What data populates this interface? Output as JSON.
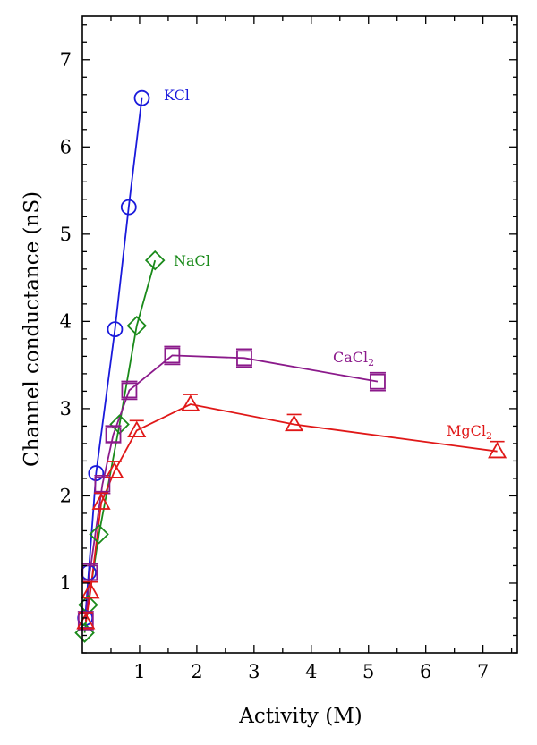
{
  "chart_data": {
    "type": "line",
    "xlabel": "Activity (M)",
    "ylabel": "Channel conductance (nS)",
    "xlim": [
      0,
      7.6
    ],
    "ylim": [
      0.2,
      7.5
    ],
    "xticks": [
      1,
      2,
      3,
      4,
      5,
      6,
      7
    ],
    "yticks": [
      1,
      2,
      3,
      4,
      5,
      6,
      7
    ],
    "xtick_labels": [
      "1",
      "2",
      "3",
      "4",
      "5",
      "6",
      "7"
    ],
    "ytick_labels": [
      "1",
      "2",
      "3",
      "4",
      "5",
      "6",
      "7"
    ],
    "series": [
      {
        "name": "KCl",
        "label_main": "KCl",
        "label_sub": "",
        "color": "#1a1adb",
        "marker": "circle",
        "x": [
          0.05,
          0.11,
          0.24,
          0.57,
          0.81,
          1.04
        ],
        "y": [
          0.6,
          1.12,
          2.26,
          3.91,
          5.31,
          6.56
        ]
      },
      {
        "name": "NaCl",
        "label_main": "NaCl",
        "label_sub": "",
        "color": "#1a8a1a",
        "marker": "diamond",
        "x": [
          0.04,
          0.1,
          0.29,
          0.65,
          0.95,
          1.27
        ],
        "y": [
          0.43,
          0.75,
          1.56,
          2.82,
          3.95,
          4.7
        ]
      },
      {
        "name": "CaCl2",
        "label_main": "CaCl",
        "label_sub": "2",
        "color": "#8b1a8b",
        "marker": "square",
        "x": [
          0.06,
          0.13,
          0.35,
          0.54,
          0.82,
          1.57,
          2.83,
          5.16
        ],
        "y": [
          0.57,
          1.12,
          2.13,
          2.7,
          3.21,
          3.61,
          3.58,
          3.31
        ]
      },
      {
        "name": "MgCl2",
        "label_main": "MgCl",
        "label_sub": "2",
        "color": "#e01818",
        "marker": "triangle",
        "x": [
          0.06,
          0.14,
          0.33,
          0.56,
          0.95,
          1.89,
          3.7,
          7.25
        ],
        "y": [
          0.55,
          0.9,
          1.92,
          2.28,
          2.75,
          3.05,
          2.82,
          2.51
        ]
      }
    ]
  }
}
